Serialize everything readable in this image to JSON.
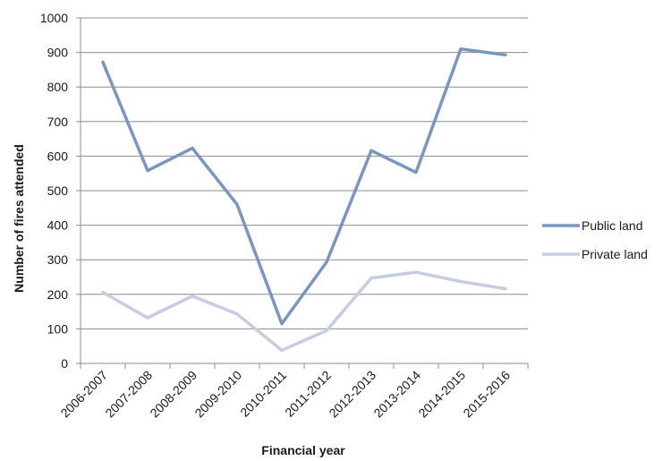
{
  "chart_data": {
    "type": "line",
    "title": "",
    "xlabel": "Financial year",
    "ylabel": "Number of fires attended",
    "categories": [
      "2006-2007",
      "2007-2008",
      "2008-2009",
      "2009-2010",
      "2010-2011",
      "2011-2012",
      "2012-2013",
      "2013-2014",
      "2014-2015",
      "2015-2016"
    ],
    "ylim": [
      0,
      1000
    ],
    "yticks": [
      "0",
      "100",
      "200",
      "300",
      "400",
      "500",
      "600",
      "700",
      "800",
      "900",
      "1000"
    ],
    "grid": true,
    "legend_position": "right",
    "series": [
      {
        "name": "Public land",
        "color": "#7a96c0",
        "values": [
          872,
          558,
          623,
          460,
          115,
          293,
          616,
          553,
          910,
          893
        ]
      },
      {
        "name": "Private land",
        "color": "#c6cde0",
        "values": [
          206,
          132,
          195,
          143,
          38,
          95,
          247,
          264,
          237,
          216
        ]
      }
    ]
  }
}
